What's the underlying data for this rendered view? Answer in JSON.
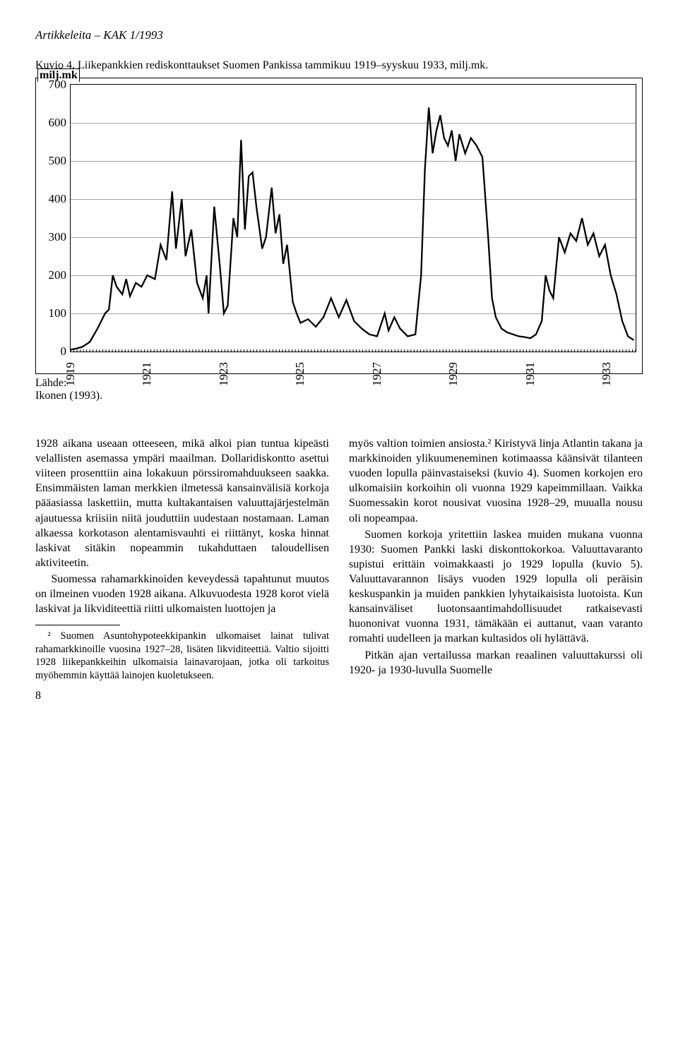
{
  "header": "Artikkeleita – KAK 1/1993",
  "figure": {
    "caption": "Kuvio 4. Liikepankkien rediskonttaukset Suomen Pankissa tammikuu 1919–syyskuu 1933, milj.mk.",
    "unit_label": "milj.mk",
    "source_label": "Lähde:",
    "source_value": "Ikonen (1993).",
    "chart": {
      "type": "line",
      "ylim": [
        0,
        700
      ],
      "ytick_step": 100,
      "yticks": [
        0,
        100,
        200,
        300,
        400,
        500,
        600,
        700
      ],
      "xlim": [
        1919,
        1933.75
      ],
      "xticks": [
        1919,
        1921,
        1923,
        1925,
        1927,
        1929,
        1931,
        1933
      ],
      "line_color": "#000000",
      "line_width": 2.3,
      "grid_color": "#000000",
      "grid_opacity": 0.35,
      "background_color": "#ffffff",
      "axis_fontsize": 17,
      "series": [
        {
          "x": 1919.0,
          "y": 5
        },
        {
          "x": 1919.15,
          "y": 8
        },
        {
          "x": 1919.3,
          "y": 12
        },
        {
          "x": 1919.5,
          "y": 25
        },
        {
          "x": 1919.7,
          "y": 60
        },
        {
          "x": 1919.9,
          "y": 100
        },
        {
          "x": 1920.0,
          "y": 110
        },
        {
          "x": 1920.1,
          "y": 200
        },
        {
          "x": 1920.2,
          "y": 170
        },
        {
          "x": 1920.35,
          "y": 150
        },
        {
          "x": 1920.45,
          "y": 190
        },
        {
          "x": 1920.55,
          "y": 145
        },
        {
          "x": 1920.7,
          "y": 180
        },
        {
          "x": 1920.85,
          "y": 170
        },
        {
          "x": 1921.0,
          "y": 200
        },
        {
          "x": 1921.1,
          "y": 195
        },
        {
          "x": 1921.2,
          "y": 190
        },
        {
          "x": 1921.35,
          "y": 280
        },
        {
          "x": 1921.5,
          "y": 240
        },
        {
          "x": 1921.65,
          "y": 420
        },
        {
          "x": 1921.75,
          "y": 270
        },
        {
          "x": 1921.9,
          "y": 400
        },
        {
          "x": 1922.0,
          "y": 250
        },
        {
          "x": 1922.15,
          "y": 320
        },
        {
          "x": 1922.3,
          "y": 180
        },
        {
          "x": 1922.45,
          "y": 140
        },
        {
          "x": 1922.55,
          "y": 200
        },
        {
          "x": 1922.6,
          "y": 100
        },
        {
          "x": 1922.75,
          "y": 380
        },
        {
          "x": 1922.9,
          "y": 220
        },
        {
          "x": 1923.0,
          "y": 100
        },
        {
          "x": 1923.1,
          "y": 120
        },
        {
          "x": 1923.25,
          "y": 350
        },
        {
          "x": 1923.35,
          "y": 300
        },
        {
          "x": 1923.45,
          "y": 555
        },
        {
          "x": 1923.55,
          "y": 320
        },
        {
          "x": 1923.65,
          "y": 460
        },
        {
          "x": 1923.75,
          "y": 470
        },
        {
          "x": 1923.85,
          "y": 380
        },
        {
          "x": 1924.0,
          "y": 270
        },
        {
          "x": 1924.1,
          "y": 300
        },
        {
          "x": 1924.25,
          "y": 430
        },
        {
          "x": 1924.35,
          "y": 310
        },
        {
          "x": 1924.45,
          "y": 360
        },
        {
          "x": 1924.55,
          "y": 230
        },
        {
          "x": 1924.65,
          "y": 280
        },
        {
          "x": 1924.8,
          "y": 130
        },
        {
          "x": 1924.9,
          "y": 100
        },
        {
          "x": 1925.0,
          "y": 75
        },
        {
          "x": 1925.2,
          "y": 85
        },
        {
          "x": 1925.4,
          "y": 65
        },
        {
          "x": 1925.6,
          "y": 90
        },
        {
          "x": 1925.8,
          "y": 140
        },
        {
          "x": 1926.0,
          "y": 90
        },
        {
          "x": 1926.2,
          "y": 135
        },
        {
          "x": 1926.4,
          "y": 80
        },
        {
          "x": 1926.6,
          "y": 60
        },
        {
          "x": 1926.8,
          "y": 45
        },
        {
          "x": 1927.0,
          "y": 40
        },
        {
          "x": 1927.2,
          "y": 100
        },
        {
          "x": 1927.3,
          "y": 55
        },
        {
          "x": 1927.45,
          "y": 90
        },
        {
          "x": 1927.6,
          "y": 60
        },
        {
          "x": 1927.8,
          "y": 40
        },
        {
          "x": 1928.0,
          "y": 45
        },
        {
          "x": 1928.15,
          "y": 200
        },
        {
          "x": 1928.25,
          "y": 480
        },
        {
          "x": 1928.35,
          "y": 640
        },
        {
          "x": 1928.45,
          "y": 520
        },
        {
          "x": 1928.55,
          "y": 580
        },
        {
          "x": 1928.65,
          "y": 620
        },
        {
          "x": 1928.75,
          "y": 560
        },
        {
          "x": 1928.85,
          "y": 540
        },
        {
          "x": 1928.95,
          "y": 580
        },
        {
          "x": 1929.05,
          "y": 500
        },
        {
          "x": 1929.15,
          "y": 570
        },
        {
          "x": 1929.3,
          "y": 520
        },
        {
          "x": 1929.45,
          "y": 560
        },
        {
          "x": 1929.6,
          "y": 540
        },
        {
          "x": 1929.75,
          "y": 510
        },
        {
          "x": 1929.9,
          "y": 300
        },
        {
          "x": 1930.0,
          "y": 140
        },
        {
          "x": 1930.1,
          "y": 90
        },
        {
          "x": 1930.25,
          "y": 60
        },
        {
          "x": 1930.4,
          "y": 50
        },
        {
          "x": 1930.55,
          "y": 45
        },
        {
          "x": 1930.7,
          "y": 40
        },
        {
          "x": 1930.85,
          "y": 38
        },
        {
          "x": 1931.0,
          "y": 35
        },
        {
          "x": 1931.15,
          "y": 45
        },
        {
          "x": 1931.3,
          "y": 80
        },
        {
          "x": 1931.4,
          "y": 200
        },
        {
          "x": 1931.5,
          "y": 160
        },
        {
          "x": 1931.6,
          "y": 140
        },
        {
          "x": 1931.75,
          "y": 300
        },
        {
          "x": 1931.9,
          "y": 260
        },
        {
          "x": 1932.05,
          "y": 310
        },
        {
          "x": 1932.2,
          "y": 290
        },
        {
          "x": 1932.35,
          "y": 350
        },
        {
          "x": 1932.5,
          "y": 280
        },
        {
          "x": 1932.65,
          "y": 310
        },
        {
          "x": 1932.8,
          "y": 250
        },
        {
          "x": 1932.95,
          "y": 280
        },
        {
          "x": 1933.1,
          "y": 200
        },
        {
          "x": 1933.25,
          "y": 150
        },
        {
          "x": 1933.4,
          "y": 80
        },
        {
          "x": 1933.55,
          "y": 40
        },
        {
          "x": 1933.7,
          "y": 30
        }
      ]
    }
  },
  "body": {
    "left": [
      "1928 aikana useaan otteeseen, mikä alkoi pian tuntua kipeästi velallisten asemassa ympäri maailman. Dollaridiskontto asettui viiteen prosenttiin aina lokakuun pörssiromahduukseen saakka. Ensimmäisten laman merkkien ilmetessä kansainvälisiä korkoja pääasiassa laskettiin, mutta kultakantaisen valuuttajärjestelmän ajautuessa kriisiin niitä jouduttiin uudestaan nostamaan. Laman alkaessa korkotason alentamisvauhti ei riittänyt, koska hinnat laskivat sitäkin nopeammin tukahduttaen taloudellisen aktiviteetin.",
      "Suomessa rahamarkkinoiden keveydessä tapahtunut muutos on ilmeinen vuoden 1928 aikana. Alkuvuodesta 1928 korot vielä laskivat ja likviditeettiä riitti ulkomaisten luottojen ja"
    ],
    "footnote": "² Suomen Asuntohypoteekkipankin ulkomaiset lainat tulivat rahamarkkinoille vuosina 1927–28, lisäten likviditeettiä. Valtio sijoitti 1928 liikepankkeihin ulkomaisia lainavarojaan, jotka oli tarkoitus myöhemmin käyttää lainojen kuoletukseen.",
    "right": [
      "myös valtion toimien ansiosta.² Kiristyvä linja Atlantin takana ja markkinoiden ylikuumeneminen kotimaassa käänsivät tilanteen vuoden lopulla päinvastaiseksi (kuvio 4). Suomen korkojen ero ulkomaisiin korkoihin oli vuonna 1929 kapeimmillaan. Vaikka Suomessakin korot nousivat vuosina 1928–29, muualla nousu oli nopeampaa.",
      "Suomen korkoja yritettiin laskea muiden mukana vuonna 1930: Suomen Pankki laski diskonttokorkoa. Valuuttavaranto supistui erittäin voimakkaasti jo 1929 lopulla (kuvio 5). Valuuttavarannon lisäys vuoden 1929 lopulla oli peräisin keskuspankin ja muiden pankkien lyhytaikaisista luotoista. Kun kansainväliset luotonsaantimahdollisuudet ratkaisevasti huononivat vuonna 1931, tämäkään ei auttanut, vaan varanto romahti uudelleen ja markan kultasidos oli hylättävä.",
      "Pitkän ajan vertailussa markan reaalinen valuuttakurssi oli 1920- ja 1930-luvulla Suomelle"
    ]
  },
  "page_number": "8"
}
